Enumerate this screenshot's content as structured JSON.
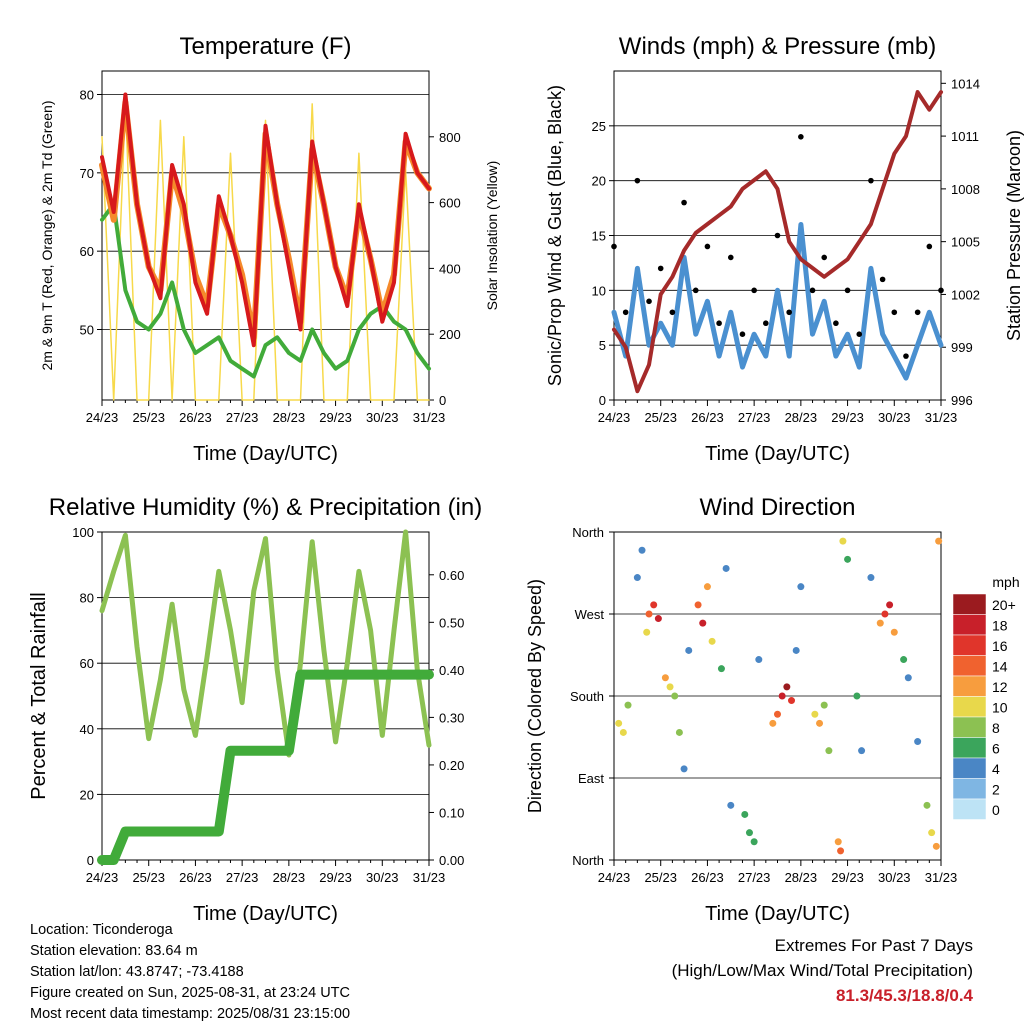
{
  "panels": {
    "temperature": {
      "title": "Temperature (F)",
      "xlabel": "Time (Day/UTC)",
      "ylabel_left": "2m & 9m T (Red, Orange) & 2m Td (Green)",
      "ylabel_right": "Solar Insolation (Yellow)"
    },
    "winds": {
      "title": "Winds (mph) & Pressure (mb)",
      "xlabel": "Time (Day/UTC)",
      "ylabel_left": "Sonic/Prop Wind & Gust (Blue, Black)",
      "ylabel_right": "Station Pressure (Maroon)"
    },
    "humidity": {
      "title": "Relative Humidity (%) & Precipitation (in)",
      "xlabel": "Time (Day/UTC)",
      "ylabel_left": "Percent & Total Rainfall"
    },
    "direction": {
      "title": "Wind Direction",
      "xlabel": "Time (Day/UTC)",
      "ylabel_left": "Direction (Colored By Speed)",
      "legend_title": "mph",
      "legend_labels": [
        "20+",
        "18",
        "16",
        "14",
        "12",
        "10",
        "8",
        "6",
        "4",
        "2",
        "0"
      ],
      "legend_colors": [
        "#9b1b1f",
        "#c8202a",
        "#e0352b",
        "#f0622f",
        "#f79d3e",
        "#e8d84b",
        "#8cc152",
        "#3ba55c",
        "#4a86c5",
        "#7fb6e3",
        "#bde3f5"
      ]
    }
  },
  "info": {
    "location": "Location: Ticonderoga",
    "elevation": "Station elevation: 83.64 m",
    "latlon": "Station lat/lon: 43.8747; -73.4188",
    "created": "Figure created on Sun, 2025-08-31, at 23:24 UTC",
    "latest": "Most recent data timestamp: 2025/08/31 23:15:00"
  },
  "extremes": {
    "heading": "Extremes For Past 7 Days",
    "subheading": "(High/Low/Max Wind/Total Precipitation)",
    "values": "81.3/45.3/18.8/0.4"
  },
  "chart_data": [
    {
      "type": "line",
      "title": "Temperature (F)",
      "xlabel": "Time (Day/UTC)",
      "ylabel": "2m & 9m T (Red, Orange) & 2m Td (Green)",
      "ylabel_right": "Solar Insolation (Yellow)",
      "x_ticks": [
        "24/23",
        "25/23",
        "26/23",
        "27/23",
        "28/23",
        "29/23",
        "30/23",
        "31/23"
      ],
      "y_ticks": [
        50,
        60,
        70,
        80
      ],
      "ylim": [
        41,
        83
      ],
      "y2_ticks": [
        0,
        200,
        400,
        600,
        800
      ],
      "y2lim": [
        0,
        1000
      ],
      "x": [
        0,
        0.25,
        0.5,
        0.75,
        1,
        1.25,
        1.5,
        1.75,
        2,
        2.25,
        2.5,
        2.75,
        3,
        3.25,
        3.5,
        3.75,
        4,
        4.25,
        4.5,
        4.75,
        5,
        5.25,
        5.5,
        5.75,
        6,
        6.25,
        6.5,
        6.75,
        7
      ],
      "series": [
        {
          "name": "2m T",
          "color": "#d7191c",
          "values": [
            72,
            65,
            80,
            66,
            58,
            54,
            71,
            66,
            56,
            52,
            67,
            62,
            56,
            48,
            76,
            66,
            58,
            50,
            74,
            66,
            58,
            53,
            66,
            59,
            51,
            56,
            75,
            70,
            68
          ]
        },
        {
          "name": "9m T",
          "color": "#f58a2b",
          "values": [
            71,
            64,
            79,
            66,
            58,
            55,
            70,
            65,
            57,
            53,
            66,
            62,
            57,
            49,
            75,
            66,
            59,
            51,
            73,
            66,
            58,
            54,
            65,
            59,
            52,
            57,
            74,
            70,
            68
          ]
        },
        {
          "name": "2m Td",
          "color": "#41ab3a",
          "values": [
            64,
            66,
            55,
            51,
            50,
            52,
            56,
            50,
            47,
            48,
            49,
            46,
            45,
            44,
            48,
            49,
            47,
            46,
            50,
            47,
            45,
            46,
            50,
            52,
            53,
            51,
            50,
            47,
            45
          ]
        },
        {
          "name": "Solar Insolation",
          "color": "#f7d94a",
          "axis": "right",
          "values": [
            800,
            0,
            900,
            0,
            0,
            850,
            0,
            800,
            0,
            0,
            0,
            750,
            0,
            0,
            850,
            0,
            0,
            0,
            900,
            0,
            0,
            0,
            750,
            0,
            0,
            0,
            700,
            0,
            0
          ]
        }
      ]
    },
    {
      "type": "line",
      "title": "Winds (mph) & Pressure (mb)",
      "xlabel": "Time (Day/UTC)",
      "ylabel": "Sonic/Prop Wind & Gust (Blue, Black)",
      "ylabel_right": "Station Pressure (Maroon)",
      "x_ticks": [
        "24/23",
        "25/23",
        "26/23",
        "27/23",
        "28/23",
        "29/23",
        "30/23",
        "31/23"
      ],
      "y_ticks": [
        0,
        5,
        10,
        15,
        20,
        25
      ],
      "ylim": [
        0,
        30
      ],
      "y2_ticks": [
        996,
        999,
        1002,
        1005,
        1008,
        1011,
        1014
      ],
      "y2lim": [
        996,
        1014.7
      ],
      "x": [
        0,
        0.25,
        0.5,
        0.75,
        1,
        1.25,
        1.5,
        1.75,
        2,
        2.25,
        2.5,
        2.75,
        3,
        3.25,
        3.5,
        3.75,
        4,
        4.25,
        4.5,
        4.75,
        5,
        5.25,
        5.5,
        5.75,
        6,
        6.25,
        6.5,
        6.75,
        7
      ],
      "series": [
        {
          "name": "Wind",
          "color": "#4a90d0",
          "values": [
            8,
            4,
            12,
            5,
            7,
            5,
            13,
            6,
            9,
            4,
            8,
            3,
            6,
            4,
            10,
            4,
            16,
            6,
            9,
            4,
            6,
            3,
            12,
            6,
            4,
            2,
            5,
            8,
            5
          ]
        },
        {
          "name": "Gust",
          "color": "#000000",
          "values": [
            14,
            8,
            20,
            9,
            12,
            8,
            18,
            10,
            14,
            7,
            13,
            6,
            10,
            7,
            15,
            8,
            24,
            10,
            13,
            7,
            10,
            6,
            20,
            11,
            8,
            4,
            8,
            14,
            10
          ]
        },
        {
          "name": "Station Pressure",
          "color": "#a52a2a",
          "axis": "right",
          "values": [
            1000,
            999,
            996.5,
            998,
            1002,
            1003,
            1004.5,
            1005.5,
            1006,
            1006.5,
            1007,
            1008,
            1008.5,
            1009,
            1008,
            1005,
            1004,
            1003.5,
            1003,
            1003.5,
            1004,
            1005,
            1006,
            1008,
            1010,
            1011,
            1013.5,
            1012.5,
            1013.5
          ]
        }
      ]
    },
    {
      "type": "line",
      "title": "Relative Humidity (%) & Precipitation (in)",
      "xlabel": "Time (Day/UTC)",
      "ylabel": "Percent & Total Rainfall",
      "x_ticks": [
        "24/23",
        "25/23",
        "26/23",
        "27/23",
        "28/23",
        "29/23",
        "30/23",
        "31/23"
      ],
      "y_ticks": [
        0,
        20,
        40,
        60,
        80,
        100
      ],
      "ylim": [
        0,
        100
      ],
      "y2_ticks": [
        0.0,
        0.1,
        0.2,
        0.3,
        0.4,
        0.5,
        0.6
      ],
      "y2_tick_labels": [
        "0.00",
        "0.10",
        "0.20",
        "0.30",
        "0.40",
        "0.50",
        "0.60"
      ],
      "y2lim": [
        0,
        0.69
      ],
      "x": [
        0,
        0.25,
        0.5,
        0.75,
        1,
        1.25,
        1.5,
        1.75,
        2,
        2.25,
        2.5,
        2.75,
        3,
        3.25,
        3.5,
        3.75,
        4,
        4.25,
        4.5,
        4.75,
        5,
        5.25,
        5.5,
        5.75,
        6,
        6.25,
        6.5,
        6.75,
        7
      ],
      "series": [
        {
          "name": "Relative Humidity",
          "color": "#8cc152",
          "values": [
            76,
            88,
            99,
            65,
            37,
            55,
            78,
            52,
            38,
            62,
            88,
            70,
            48,
            82,
            98,
            58,
            32,
            60,
            97,
            64,
            36,
            60,
            88,
            70,
            38,
            70,
            100,
            58,
            35
          ]
        },
        {
          "name": "Total Rainfall",
          "color": "#41ab3a",
          "axis": "right",
          "values": [
            0,
            0,
            0.06,
            0.06,
            0.06,
            0.06,
            0.06,
            0.06,
            0.06,
            0.06,
            0.06,
            0.23,
            0.23,
            0.23,
            0.23,
            0.23,
            0.23,
            0.39,
            0.39,
            0.39,
            0.39,
            0.39,
            0.39,
            0.39,
            0.39,
            0.39,
            0.39,
            0.39,
            0.39
          ]
        }
      ]
    },
    {
      "type": "scatter",
      "title": "Wind Direction",
      "xlabel": "Time (Day/UTC)",
      "ylabel": "Direction (Colored By Speed)",
      "x_ticks": [
        "24/23",
        "25/23",
        "26/23",
        "27/23",
        "28/23",
        "29/23",
        "30/23",
        "31/23"
      ],
      "y_ticks": [
        "North",
        "East",
        "South",
        "West",
        "North"
      ],
      "ylim": [
        0,
        360
      ],
      "colorbar": {
        "label": "mph",
        "ticks": [
          "0",
          "2",
          "4",
          "6",
          "8",
          "10",
          "12",
          "14",
          "16",
          "18",
          "20+"
        ]
      },
      "points": [
        {
          "x": 0.1,
          "dir": 150,
          "speed": 9
        },
        {
          "x": 0.2,
          "dir": 140,
          "speed": 10
        },
        {
          "x": 0.3,
          "dir": 170,
          "speed": 7
        },
        {
          "x": 0.5,
          "dir": 310,
          "speed": 4
        },
        {
          "x": 0.6,
          "dir": 340,
          "speed": 3
        },
        {
          "x": 0.75,
          "dir": 270,
          "speed": 13
        },
        {
          "x": 0.85,
          "dir": 280,
          "speed": 16
        },
        {
          "x": 0.95,
          "dir": 265,
          "speed": 18
        },
        {
          "x": 0.7,
          "dir": 250,
          "speed": 10
        },
        {
          "x": 1.1,
          "dir": 200,
          "speed": 11
        },
        {
          "x": 1.2,
          "dir": 190,
          "speed": 10
        },
        {
          "x": 1.3,
          "dir": 180,
          "speed": 8
        },
        {
          "x": 1.4,
          "dir": 140,
          "speed": 7
        },
        {
          "x": 1.6,
          "dir": 230,
          "speed": 4
        },
        {
          "x": 1.5,
          "dir": 100,
          "speed": 3
        },
        {
          "x": 1.8,
          "dir": 280,
          "speed": 14
        },
        {
          "x": 1.9,
          "dir": 260,
          "speed": 17
        },
        {
          "x": 2.0,
          "dir": 300,
          "speed": 12
        },
        {
          "x": 2.1,
          "dir": 240,
          "speed": 9
        },
        {
          "x": 2.3,
          "dir": 210,
          "speed": 5
        },
        {
          "x": 2.4,
          "dir": 320,
          "speed": 3
        },
        {
          "x": 2.5,
          "dir": 60,
          "speed": 4
        },
        {
          "x": 2.8,
          "dir": 50,
          "speed": 5
        },
        {
          "x": 2.9,
          "dir": 30,
          "speed": 6
        },
        {
          "x": 3.0,
          "dir": 20,
          "speed": 5
        },
        {
          "x": 3.1,
          "dir": 220,
          "speed": 4
        },
        {
          "x": 3.4,
          "dir": 150,
          "speed": 12
        },
        {
          "x": 3.5,
          "dir": 160,
          "speed": 14
        },
        {
          "x": 3.6,
          "dir": 180,
          "speed": 17
        },
        {
          "x": 3.7,
          "dir": 190,
          "speed": 19
        },
        {
          "x": 3.8,
          "dir": 175,
          "speed": 16
        },
        {
          "x": 3.9,
          "dir": 230,
          "speed": 4
        },
        {
          "x": 4.0,
          "dir": 300,
          "speed": 3
        },
        {
          "x": 4.3,
          "dir": 160,
          "speed": 9
        },
        {
          "x": 4.4,
          "dir": 150,
          "speed": 12
        },
        {
          "x": 4.5,
          "dir": 170,
          "speed": 8
        },
        {
          "x": 4.6,
          "dir": 120,
          "speed": 7
        },
        {
          "x": 4.8,
          "dir": 20,
          "speed": 12
        },
        {
          "x": 4.85,
          "dir": 10,
          "speed": 14
        },
        {
          "x": 4.9,
          "dir": 350,
          "speed": 9
        },
        {
          "x": 5.0,
          "dir": 330,
          "speed": 5
        },
        {
          "x": 5.2,
          "dir": 180,
          "speed": 5
        },
        {
          "x": 5.3,
          "dir": 120,
          "speed": 4
        },
        {
          "x": 5.5,
          "dir": 310,
          "speed": 4
        },
        {
          "x": 5.7,
          "dir": 260,
          "speed": 12
        },
        {
          "x": 5.8,
          "dir": 270,
          "speed": 15
        },
        {
          "x": 5.9,
          "dir": 280,
          "speed": 17
        },
        {
          "x": 6.0,
          "dir": 250,
          "speed": 11
        },
        {
          "x": 6.2,
          "dir": 220,
          "speed": 6
        },
        {
          "x": 6.3,
          "dir": 200,
          "speed": 4
        },
        {
          "x": 6.5,
          "dir": 130,
          "speed": 4
        },
        {
          "x": 6.7,
          "dir": 60,
          "speed": 7
        },
        {
          "x": 6.8,
          "dir": 30,
          "speed": 10
        },
        {
          "x": 6.9,
          "dir": 15,
          "speed": 12
        },
        {
          "x": 6.95,
          "dir": 350,
          "speed": 11
        }
      ]
    }
  ]
}
